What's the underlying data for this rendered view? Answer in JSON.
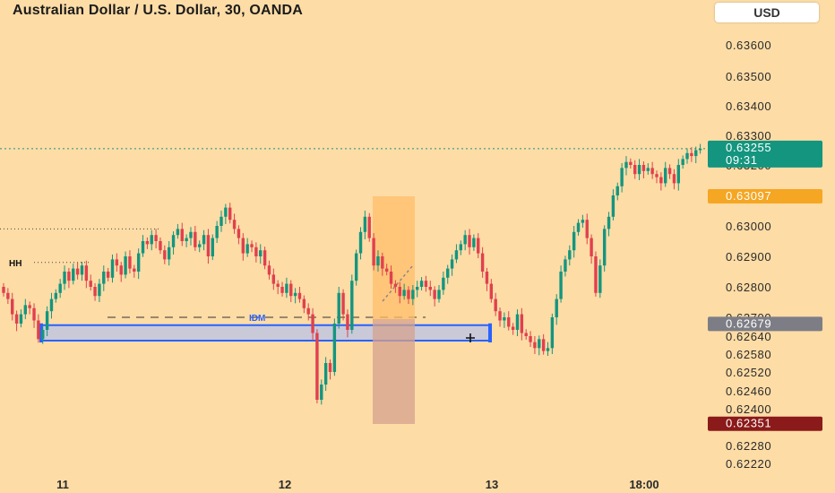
{
  "header": {
    "title": "Australian Dollar / U.S. Dollar, 30, OANDA",
    "currency": "USD"
  },
  "colors": {
    "background": "#fddca6",
    "up": "#14957f",
    "down": "#e0404e",
    "current_price": "#14957f",
    "level_orange": "#f5a623",
    "level_gray": "#7d7d86",
    "level_darkred": "#8b1a1a",
    "zone_blue": "#2962ff",
    "zone_fill": "#c9c9d8"
  },
  "annotations": {
    "hh": "HH",
    "idm": "IDM"
  },
  "chart_data": {
    "type": "candlestick",
    "title": "Australian Dollar / U.S. Dollar, 30, OANDA",
    "y_ticks": [
      "0.63600",
      "0.63500",
      "0.63400",
      "0.63300",
      "0.63200",
      "0.63000",
      "0.62900",
      "0.62800",
      "0.62700",
      "0.62640",
      "0.62580",
      "0.62520",
      "0.62460",
      "0.62400",
      "0.62280",
      "0.62220"
    ],
    "x_ticks": [
      "11",
      "12",
      "13",
      "18:00"
    ],
    "price_labels": [
      {
        "label": "0.63255",
        "sub": "09:31",
        "role": "current"
      },
      {
        "label": "0.63097",
        "role": "orange"
      },
      {
        "label": "0.62679",
        "role": "gray"
      },
      {
        "label": "0.62351",
        "role": "darkred"
      }
    ],
    "closes": [
      0.6278,
      0.6276,
      0.6271,
      0.6268,
      0.6271,
      0.6274,
      0.6273,
      0.6269,
      0.6263,
      0.6266,
      0.6272,
      0.6276,
      0.6278,
      0.6281,
      0.6285,
      0.6282,
      0.6286,
      0.6284,
      0.6287,
      0.6282,
      0.628,
      0.6277,
      0.6281,
      0.6285,
      0.6283,
      0.6289,
      0.6287,
      0.6284,
      0.629,
      0.6286,
      0.6285,
      0.6291,
      0.6295,
      0.6294,
      0.6297,
      0.6295,
      0.6292,
      0.6289,
      0.6293,
      0.6297,
      0.6299,
      0.6295,
      0.6296,
      0.6298,
      0.6293,
      0.6294,
      0.6297,
      0.629,
      0.6296,
      0.63,
      0.6303,
      0.6306,
      0.6302,
      0.6299,
      0.6296,
      0.6291,
      0.6294,
      0.6293,
      0.629,
      0.6292,
      0.6287,
      0.6284,
      0.6281,
      0.628,
      0.6278,
      0.6281,
      0.6277,
      0.6278,
      0.6276,
      0.6273,
      0.6271,
      0.6265,
      0.6243,
      0.6248,
      0.6255,
      0.6252,
      0.6268,
      0.6278,
      0.6271,
      0.6266,
      0.6282,
      0.6291,
      0.6298,
      0.6303,
      0.6296,
      0.6287,
      0.629,
      0.6286,
      0.6285,
      0.6281,
      0.628,
      0.6277,
      0.6279,
      0.6276,
      0.6279,
      0.628,
      0.6282,
      0.628,
      0.6279,
      0.6276,
      0.6279,
      0.6283,
      0.6286,
      0.6289,
      0.6292,
      0.6294,
      0.6297,
      0.6293,
      0.6296,
      0.6291,
      0.6285,
      0.6281,
      0.6276,
      0.6272,
      0.6269,
      0.627,
      0.6267,
      0.6266,
      0.6271,
      0.6265,
      0.6264,
      0.6262,
      0.626,
      0.6263,
      0.6259,
      0.626,
      0.627,
      0.6276,
      0.6285,
      0.6289,
      0.6292,
      0.6298,
      0.6301,
      0.6302,
      0.6296,
      0.629,
      0.6278,
      0.6287,
      0.6299,
      0.6303,
      0.631,
      0.6313,
      0.6319,
      0.6321,
      0.632,
      0.6317,
      0.632,
      0.6318,
      0.6319,
      0.6317,
      0.6316,
      0.6314,
      0.6319,
      0.6317,
      0.6314,
      0.632,
      0.6322,
      0.6324,
      0.6323,
      0.6325,
      0.63255
    ],
    "idm_level": 0.627,
    "hh_level": 0.6288,
    "upper_dotted_level": 0.6299,
    "zone": {
      "from": 0.62625,
      "to": 0.62675
    }
  }
}
